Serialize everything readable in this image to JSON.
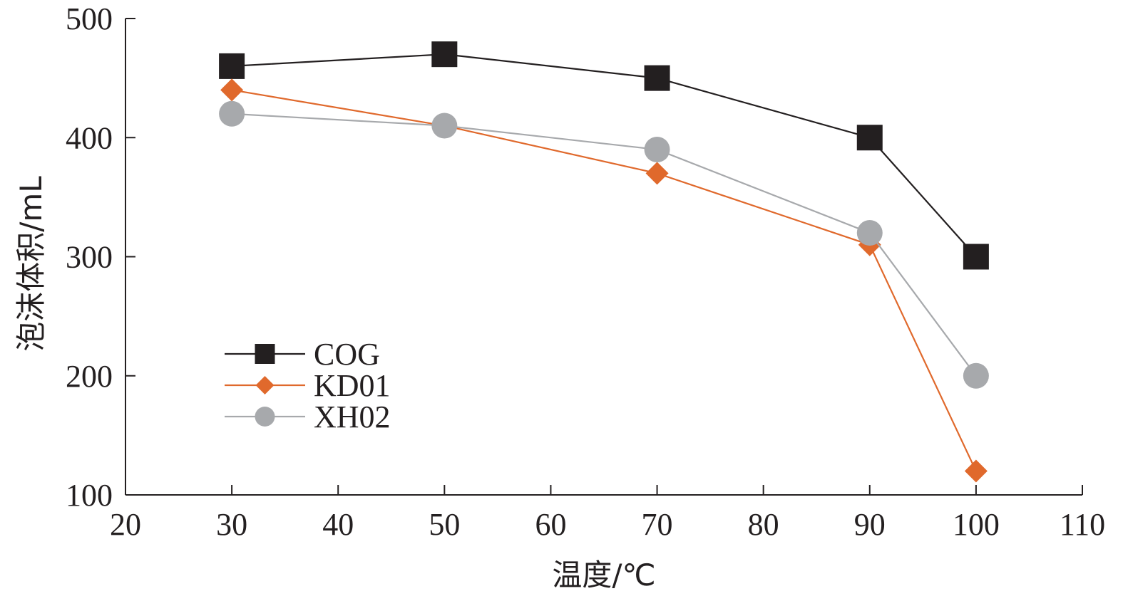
{
  "chart_data": {
    "type": "line",
    "title": "",
    "xlabel": "温度/℃",
    "ylabel": "泡沫体积/mL",
    "xlim": [
      20,
      110
    ],
    "ylim": [
      100,
      500
    ],
    "xticks": [
      20,
      30,
      40,
      50,
      60,
      70,
      80,
      90,
      100,
      110
    ],
    "yticks": [
      100,
      200,
      300,
      400,
      500
    ],
    "grid": false,
    "legend_position": "center-left",
    "x": [
      30,
      50,
      70,
      90,
      100
    ],
    "series": [
      {
        "name": "COG",
        "values": [
          460,
          470,
          450,
          400,
          300
        ],
        "color": "#231f20",
        "marker": "square"
      },
      {
        "name": "KD01",
        "values": [
          440,
          410,
          370,
          310,
          120
        ],
        "color": "#e0692c",
        "marker": "diamond"
      },
      {
        "name": "XH02",
        "values": [
          420,
          410,
          390,
          320,
          200
        ],
        "color": "#a7a9ac",
        "marker": "circle"
      }
    ]
  }
}
